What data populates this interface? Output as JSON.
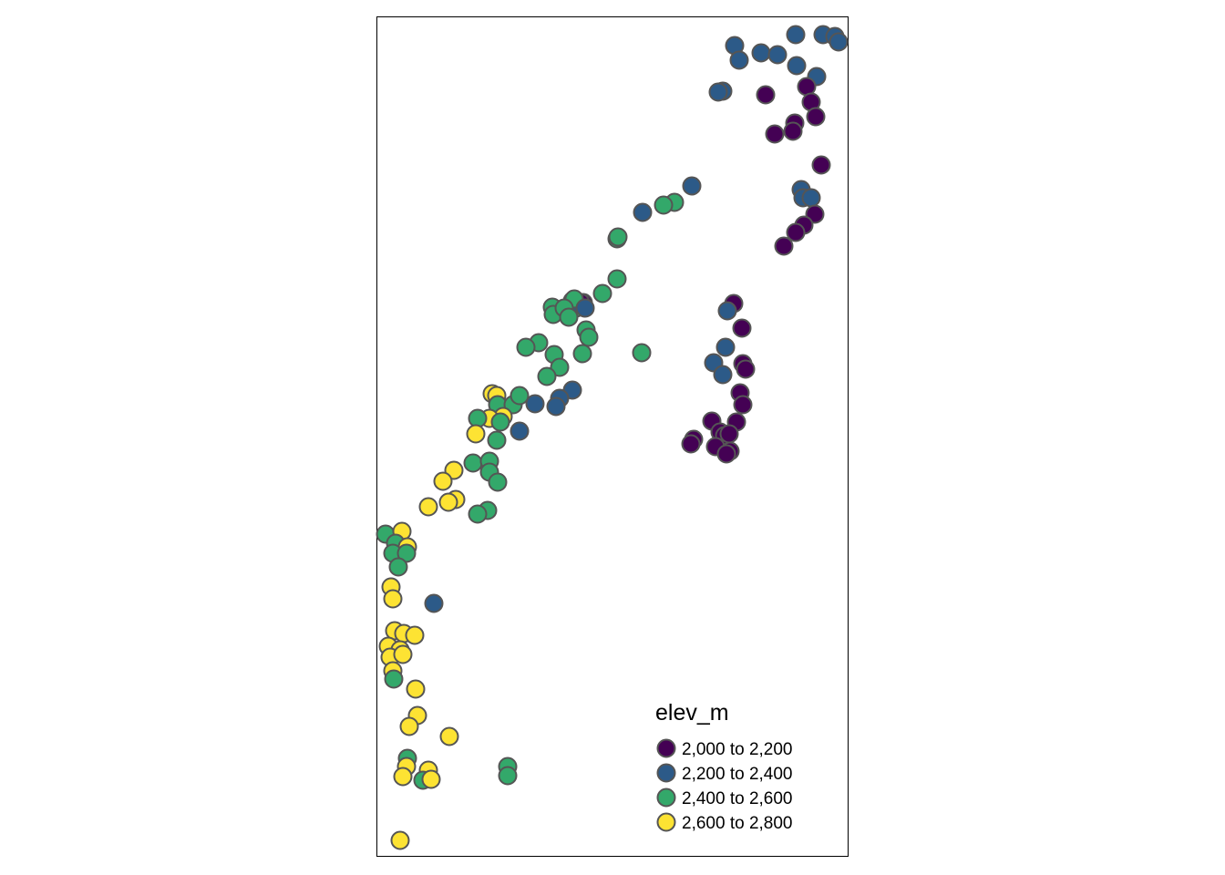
{
  "map": {
    "type": "point-symbol-map",
    "frame": "rectangle",
    "point_stroke": "#555555",
    "point_fill_by": "elev_m class"
  },
  "legend": {
    "title": "elev_m",
    "position": "bottom-right",
    "items": [
      {
        "label": "2,000 to 2,200",
        "color": "#440154"
      },
      {
        "label": "2,200 to 2,400",
        "color": "#2C5A88"
      },
      {
        "label": "2,400 to 2,600",
        "color": "#33A86A"
      },
      {
        "label": "2,600 to 2,800",
        "color": "#FDE333"
      }
    ]
  }
}
